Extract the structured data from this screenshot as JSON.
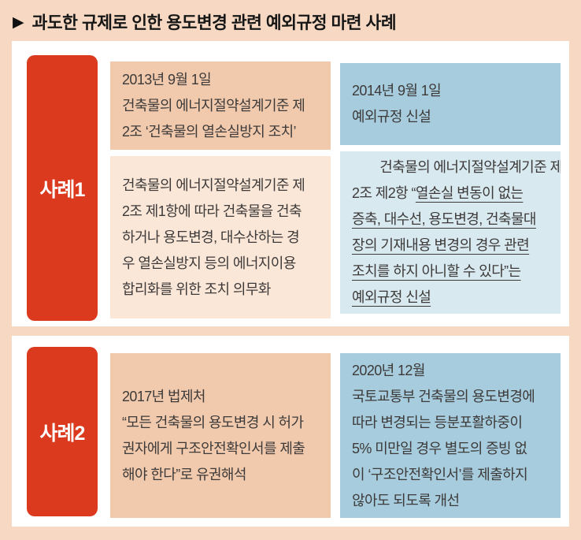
{
  "header": {
    "marker": "▶",
    "title": "과도한 규제로 인한 용도변경 관련 예외규정 마련 사례"
  },
  "colors": {
    "accent_red": "#db3a1e",
    "background_peach": "#f7d9c3",
    "panel_white": "#ffffff",
    "box_peach_dark": "#f1caad",
    "box_peach_light": "#fbe7d8",
    "box_blue_dark": "#a6ccdd",
    "box_blue_light": "#d8e9f0",
    "body_text": "#3d3a39"
  },
  "cases": [
    {
      "label": "사례1",
      "before": {
        "date_box": "2013년 9월 1일\n건축물의 에너지절약설계기준 제\n2조 ‘건축물의 열손실방지 조치’",
        "detail_box": "건축물의 에너지절약설계기준 제\n2조 제1항에 따라 건축물을 건축\n하거나 용도변경, 대수산하는 경\n우 열손실방지 등의 에너지이용\n합리화를 위한 조치 의무화"
      },
      "after": {
        "date_box": "2014년 9월 1일\n예외규정 신설",
        "detail_normal": "건축물의 에너지절약설계기준 제\n2조 제2항 “",
        "detail_underlined": "열손실 변동이 없는\n증축, 대수선, 용도변경, 건축물대\n장의 기재내용 변경의 경우 관련\n조치를 하지 아니할 수 있다”는\n예외규정 신설"
      }
    },
    {
      "label": "사례2",
      "before": {
        "box": "2017년 법제처\n“모든 건축물의 용도변경 시 허가\n권자에게 구조안전확인서를 제출\n해야 한다”로 유권해석"
      },
      "after": {
        "box": "2020년 12월\n국토교통부 건축물의 용도변경에\n따라 변경되는 등분포활하중이\n5% 미만일 경우 별도의 증빙 없\n이 ‘구조안전확인서’를 제출하지\n않아도 되도록 개선"
      }
    }
  ]
}
